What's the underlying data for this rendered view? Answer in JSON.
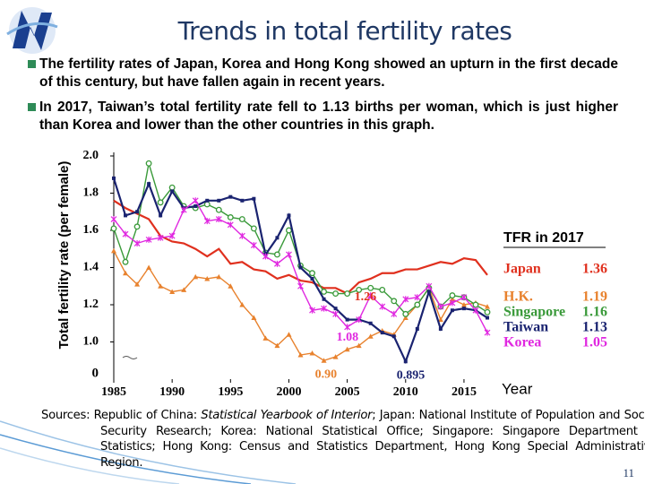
{
  "slide": {
    "title": "Trends in total fertility rates",
    "bullets": [
      "The fertility rates of Japan, Korea and Hong Kong showed an upturn in the first decade of this century, but have fallen again in recent years.",
      "In 2017, Taiwan’s total fertility rate fell to 1.13 births per woman, which is just higher than Korea and lower than the other countries in this graph."
    ],
    "sources": [
      {
        "text": "Sources: Republic of China: "
      },
      {
        "text": "Statistical Yearbook of Interior",
        "italic": true
      },
      {
        "text": "; Japan: National Institute of Population and Social Security Research; Korea: National Statistical Office; Singapore: Singapore Department of Statistics; Hong Kong: Census and Statistics Department, Hong Kong Special Administrative Region."
      }
    ],
    "page_number": "11"
  },
  "chart_data": {
    "type": "line",
    "ylabel": "Total fertility rate (per female)",
    "xlabel": "Year",
    "x": [
      1985,
      1986,
      1987,
      1988,
      1989,
      1990,
      1991,
      1992,
      1993,
      1994,
      1995,
      1996,
      1997,
      1998,
      1999,
      2000,
      2001,
      2002,
      2003,
      2004,
      2005,
      2006,
      2007,
      2008,
      2009,
      2010,
      2011,
      2012,
      2013,
      2014,
      2015,
      2016,
      2017
    ],
    "xlim": [
      1985,
      2017
    ],
    "xticks": [
      1985,
      1990,
      1995,
      2000,
      2005,
      2010,
      2015
    ],
    "ylim": [
      0.8,
      2.0
    ],
    "yticks": [
      {
        "value": 1,
        "label": "1.0"
      },
      1.2,
      1.4,
      1.6,
      1.8,
      {
        "value": 2,
        "label": "2.0"
      }
    ],
    "axis_break_label": "0",
    "legend_title": "TFR in 2017",
    "series": [
      {
        "name": "Japan",
        "color": "#e0301e",
        "marker": "none",
        "values": [
          1.76,
          1.72,
          1.69,
          1.66,
          1.57,
          1.54,
          1.53,
          1.5,
          1.46,
          1.5,
          1.42,
          1.43,
          1.39,
          1.38,
          1.34,
          1.36,
          1.33,
          1.32,
          1.29,
          1.29,
          1.26,
          1.32,
          1.34,
          1.37,
          1.37,
          1.39,
          1.39,
          1.41,
          1.43,
          1.42,
          1.45,
          1.44,
          1.36
        ]
      },
      {
        "name": "H.K.",
        "color": "#e8822e",
        "marker": "triangle",
        "values": [
          1.49,
          1.37,
          1.31,
          1.4,
          1.3,
          1.27,
          1.28,
          1.35,
          1.34,
          1.35,
          1.3,
          1.2,
          1.13,
          1.02,
          0.98,
          1.04,
          0.93,
          0.94,
          0.9,
          0.92,
          0.96,
          0.98,
          1.03,
          1.06,
          1.04,
          1.13,
          1.2,
          1.29,
          1.12,
          1.23,
          1.2,
          1.21,
          1.19
        ]
      },
      {
        "name": "Singapore",
        "color": "#3a9a3a",
        "marker": "circle",
        "values": [
          1.61,
          1.43,
          1.62,
          1.96,
          1.75,
          1.83,
          1.73,
          1.72,
          1.74,
          1.71,
          1.67,
          1.66,
          1.61,
          1.48,
          1.47,
          1.6,
          1.41,
          1.37,
          1.27,
          1.26,
          1.26,
          1.28,
          1.29,
          1.28,
          1.22,
          1.15,
          1.2,
          1.29,
          1.19,
          1.25,
          1.24,
          1.2,
          1.16
        ]
      },
      {
        "name": "Taiwan",
        "color": "#1a2370",
        "marker": "square",
        "values": [
          1.88,
          1.68,
          1.7,
          1.85,
          1.68,
          1.81,
          1.72,
          1.73,
          1.76,
          1.76,
          1.78,
          1.76,
          1.77,
          1.47,
          1.56,
          1.68,
          1.4,
          1.34,
          1.23,
          1.18,
          1.12,
          1.12,
          1.1,
          1.05,
          1.03,
          0.895,
          1.07,
          1.27,
          1.07,
          1.17,
          1.18,
          1.17,
          1.13
        ]
      },
      {
        "name": "Korea",
        "color": "#e028e0",
        "marker": "star",
        "values": [
          1.66,
          1.58,
          1.53,
          1.55,
          1.56,
          1.57,
          1.71,
          1.76,
          1.65,
          1.66,
          1.63,
          1.57,
          1.52,
          1.46,
          1.42,
          1.47,
          1.3,
          1.17,
          1.18,
          1.15,
          1.08,
          1.12,
          1.25,
          1.19,
          1.15,
          1.23,
          1.24,
          1.3,
          1.19,
          1.21,
          1.24,
          1.17,
          1.05
        ]
      }
    ],
    "annotations": [
      {
        "text": "1.26",
        "x": 2005,
        "y": 1.26,
        "color": "#e0301e"
      },
      {
        "text": "1.08",
        "x": 2005,
        "y": 1.08,
        "color": "#e028e0"
      },
      {
        "text": "0.90",
        "x": 2003,
        "y": 0.9,
        "color": "#e8822e"
      },
      {
        "text": "0.895",
        "x": 2010,
        "y": 0.895,
        "color": "#1a2370"
      }
    ]
  }
}
